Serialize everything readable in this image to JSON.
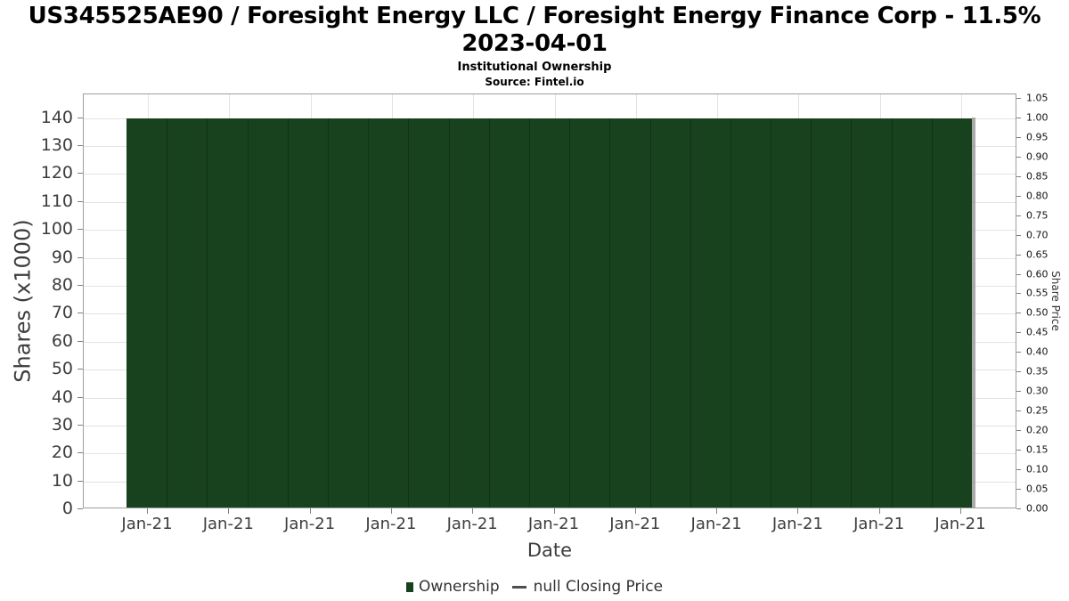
{
  "header": {
    "title_line1": "US345525AE90 / Foresight Energy LLC / Foresight Energy Finance Corp - 11.5%",
    "title_line2": "2023-04-01",
    "subtitle": "Institutional Ownership",
    "source": "Source: Fintel.io"
  },
  "axes": {
    "left_label": "Shares (x1000)",
    "right_label": "Share Price",
    "x_label": "Date"
  },
  "legend": {
    "ownership": "Ownership",
    "closing_price": "null Closing Price"
  },
  "colors": {
    "bar_fill": "#17421d",
    "bar_separator": "#0e3413",
    "bar_shadow": "#9b9b9b",
    "gridline": "#e3e3e3",
    "plot_border": "#9e9e9e",
    "tick_mark": "#808080",
    "axis_text": "#3d3d3d",
    "legend_line": "#4f4f4f"
  },
  "chart_data": {
    "type": "bar",
    "title": "US345525AE90 / Foresight Energy LLC / Foresight Energy Finance Corp - 11.5% 2023-04-01",
    "subtitle": "Institutional Ownership",
    "source": "Source: Fintel.io",
    "xlabel": "Date",
    "ylabel_left": "Shares (x1000)",
    "ylabel_right": "Share Price",
    "grid": true,
    "legend_position": "bottom",
    "x_tick_labels": [
      "Jan-21",
      "Jan-21",
      "Jan-21",
      "Jan-21",
      "Jan-21",
      "Jan-21",
      "Jan-21",
      "Jan-21",
      "Jan-21",
      "Jan-21",
      "Jan-21"
    ],
    "left_ticks": [
      0,
      10,
      20,
      30,
      40,
      50,
      60,
      70,
      80,
      90,
      100,
      110,
      120,
      130,
      140
    ],
    "right_ticks": [
      "1.05",
      "1.00",
      "0.95",
      "0.90",
      "0.85",
      "0.80",
      "0.75",
      "0.70",
      "0.65",
      "0.60",
      "0.55",
      "0.50",
      "0.45",
      "0.40",
      "0.35",
      "0.30",
      "0.25",
      "0.20",
      "0.15",
      "0.10",
      "0.05",
      "0.00"
    ],
    "left_axis_range": [
      0,
      148.5
    ],
    "right_axis_range": [
      0,
      1.061
    ],
    "series": [
      {
        "name": "Ownership",
        "type": "bar",
        "color": "#17421d",
        "values": [
          140,
          140,
          140,
          140,
          140,
          140,
          140,
          140,
          140,
          140,
          140,
          140,
          140,
          140,
          140,
          140,
          140,
          140,
          140,
          140,
          140
        ]
      },
      {
        "name": "null Closing Price",
        "type": "line",
        "color": "#4f4f4f",
        "values": null
      }
    ]
  }
}
